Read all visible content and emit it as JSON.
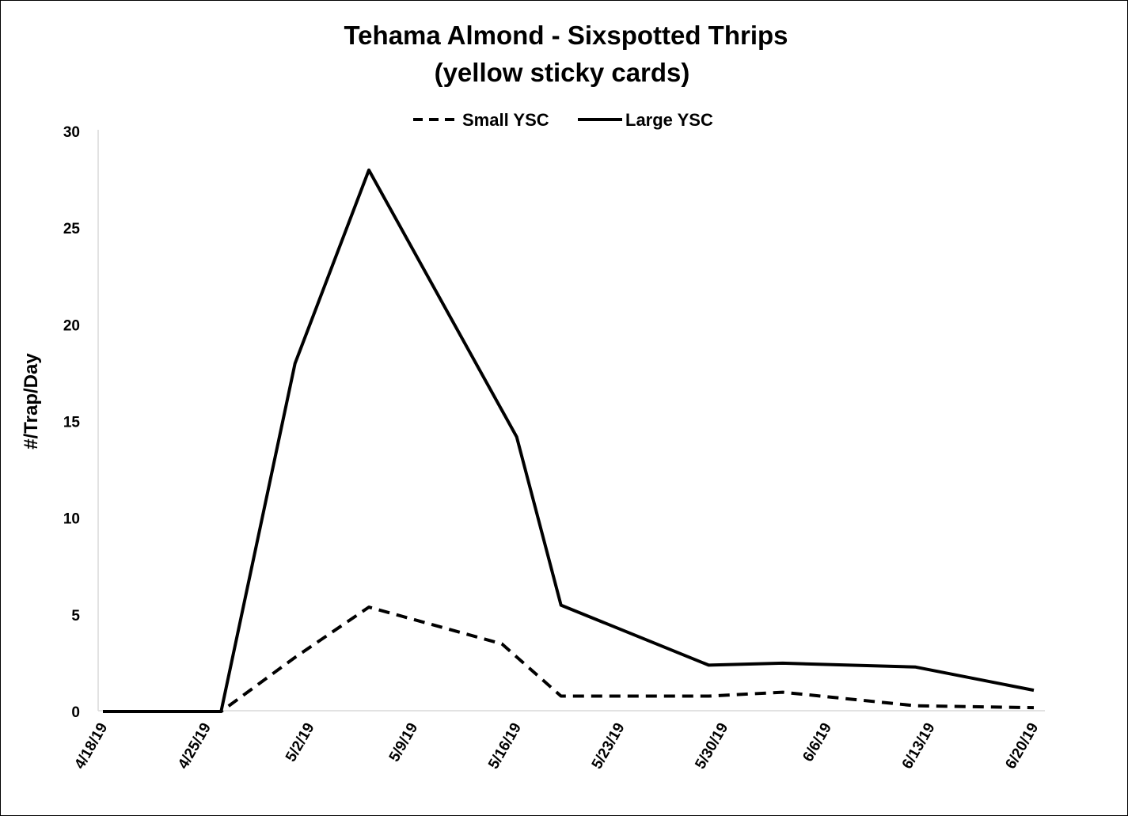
{
  "chart_data": {
    "type": "line",
    "title": "Tehama Almond - Sixspotted Thrips",
    "subtitle": "(yellow sticky cards)",
    "xlabel": "",
    "ylabel": "#/Trap/Day",
    "ylim": [
      0,
      30
    ],
    "yticks": [
      "0",
      "5",
      "10",
      "15",
      "20",
      "25",
      "30"
    ],
    "x_tick_labels": [
      "4/18/19",
      "4/25/19",
      "5/2/19",
      "5/9/19",
      "5/16/19",
      "5/23/19",
      "5/30/19",
      "6/6/19",
      "6/13/19",
      "6/20/19"
    ],
    "x_range": [
      "4/18/19",
      "6/20/19"
    ],
    "grid": false,
    "legend_position": "top-center",
    "series": [
      {
        "name": "Small YSC",
        "style": "dashed",
        "color": "#000000",
        "points": [
          {
            "x": "4/18/19",
            "y": 0
          },
          {
            "x": "4/26/19",
            "y": 0
          },
          {
            "x": "5/1/19",
            "y": 2.8
          },
          {
            "x": "5/6/19",
            "y": 5.4
          },
          {
            "x": "5/15/19",
            "y": 3.5
          },
          {
            "x": "5/19/19",
            "y": 0.8
          },
          {
            "x": "5/29/19",
            "y": 0.8
          },
          {
            "x": "6/3/19",
            "y": 1.0
          },
          {
            "x": "6/12/19",
            "y": 0.3
          },
          {
            "x": "6/20/19",
            "y": 0.2
          }
        ]
      },
      {
        "name": "Large YSC",
        "style": "solid",
        "color": "#000000",
        "points": [
          {
            "x": "4/18/19",
            "y": 0
          },
          {
            "x": "4/26/19",
            "y": 0
          },
          {
            "x": "5/1/19",
            "y": 18
          },
          {
            "x": "5/6/19",
            "y": 28
          },
          {
            "x": "5/16/19",
            "y": 14.2
          },
          {
            "x": "5/19/19",
            "y": 5.5
          },
          {
            "x": "5/29/19",
            "y": 2.4
          },
          {
            "x": "6/3/19",
            "y": 2.5
          },
          {
            "x": "6/12/19",
            "y": 2.3
          },
          {
            "x": "6/20/19",
            "y": 1.1
          }
        ]
      }
    ]
  }
}
